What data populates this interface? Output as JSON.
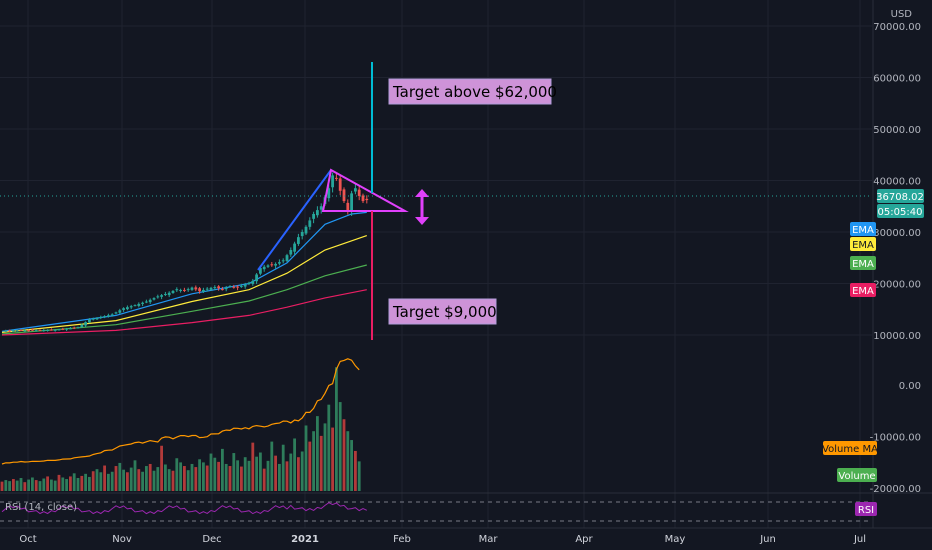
{
  "chart_data": {
    "type": "candlestick",
    "currency": "USD",
    "price_axis": {
      "ticks": [
        10000,
        20000,
        30000,
        40000,
        50000,
        60000,
        70000
      ],
      "labels": [
        "10000.00",
        "20000.00",
        "30000.00",
        "40000.00",
        "50000.00",
        "60000.00",
        "70000.00"
      ],
      "range": [
        0,
        72000
      ]
    },
    "volume_axis": {
      "ticks": [
        0,
        -10000,
        -20000
      ],
      "labels": [
        "0.00",
        "-10000.00",
        "-20000.00"
      ]
    },
    "time_axis": {
      "labels": [
        "Oct",
        "Nov",
        "Dec",
        "2021",
        "Feb",
        "Mar",
        "Apr",
        "May",
        "Jun",
        "Jul"
      ],
      "bold_index": 3
    },
    "last_price": {
      "value": 36708.02,
      "label": "36708.02",
      "countdown": "05:05:40"
    },
    "price_path": [
      [
        0,
        10800
      ],
      [
        5,
        10900
      ],
      [
        10,
        10950
      ],
      [
        14,
        11000
      ],
      [
        18,
        11300
      ],
      [
        20,
        11500
      ],
      [
        23,
        13000
      ],
      [
        26,
        13500
      ],
      [
        29,
        14000
      ],
      [
        32,
        15200
      ],
      [
        35,
        15800
      ],
      [
        38,
        16500
      ],
      [
        41,
        17500
      ],
      [
        44,
        18200
      ],
      [
        46,
        18900
      ],
      [
        48,
        18600
      ],
      [
        50,
        19200
      ],
      [
        52,
        18500
      ],
      [
        54,
        19000
      ],
      [
        56,
        19300
      ],
      [
        58,
        18900
      ],
      [
        60,
        19500
      ],
      [
        62,
        19200
      ],
      [
        64,
        19800
      ],
      [
        66,
        20500
      ],
      [
        68,
        23000
      ],
      [
        70,
        23500
      ],
      [
        72,
        23800
      ],
      [
        74,
        24500
      ],
      [
        76,
        26500
      ],
      [
        78,
        29000
      ],
      [
        80,
        31000
      ],
      [
        82,
        33500
      ],
      [
        84,
        35000
      ],
      [
        86,
        38500
      ],
      [
        87,
        41000
      ],
      [
        88,
        40500
      ],
      [
        89,
        38000
      ],
      [
        90,
        36000
      ],
      [
        91,
        34000
      ],
      [
        92,
        37500
      ],
      [
        93,
        38500
      ],
      [
        94,
        37000
      ],
      [
        95,
        36000
      ],
      [
        96,
        36200
      ],
      [
        97,
        35700
      ],
      [
        98,
        36708
      ]
    ],
    "ema_series": [
      {
        "name": "EMA",
        "color": "#2196f3",
        "points": [
          [
            0,
            10700
          ],
          [
            30,
            13800
          ],
          [
            50,
            18000
          ],
          [
            65,
            20000
          ],
          [
            75,
            24000
          ],
          [
            85,
            31500
          ],
          [
            92,
            33500
          ],
          [
            96,
            33800
          ]
        ]
      },
      {
        "name": "EMA",
        "color": "#ffeb3b",
        "points": [
          [
            0,
            10500
          ],
          [
            30,
            12800
          ],
          [
            50,
            16500
          ],
          [
            65,
            18800
          ],
          [
            75,
            22000
          ],
          [
            85,
            26500
          ],
          [
            96,
            29300
          ]
        ]
      },
      {
        "name": "EMA",
        "color": "#4caf50",
        "points": [
          [
            0,
            10200
          ],
          [
            30,
            12000
          ],
          [
            50,
            14600
          ],
          [
            65,
            16600
          ],
          [
            75,
            18800
          ],
          [
            85,
            21500
          ],
          [
            96,
            23600
          ]
        ]
      },
      {
        "name": "EMA",
        "color": "#e91e63",
        "points": [
          [
            0,
            10000
          ],
          [
            30,
            10900
          ],
          [
            50,
            12400
          ],
          [
            65,
            13800
          ],
          [
            75,
            15400
          ],
          [
            85,
            17200
          ],
          [
            96,
            18800
          ]
        ]
      }
    ],
    "ema_legend": [
      {
        "label": "EMA",
        "color": "#2196f3"
      },
      {
        "label": "EMA",
        "color": "#ffeb3b"
      },
      {
        "label": "EMA",
        "color": "#4caf50"
      },
      {
        "label": "EMA",
        "color": "#e91e63"
      }
    ],
    "volume_values": [
      1800,
      2100,
      1900,
      2300,
      2000,
      2500,
      1700,
      2200,
      2600,
      2100,
      1900,
      2400,
      2800,
      2200,
      2000,
      3100,
      2600,
      2300,
      2800,
      3400,
      2500,
      2900,
      3300,
      2700,
      3800,
      4200,
      3600,
      4900,
      3300,
      3700,
      4800,
      5400,
      4100,
      3600,
      4500,
      5900,
      4200,
      3700,
      4800,
      5200,
      3900,
      4600,
      8700,
      5100,
      4200,
      3900,
      6300,
      5500,
      4800,
      4000,
      5200,
      4600,
      6100,
      5500,
      4900,
      7200,
      6400,
      5600,
      8100,
      5200,
      4800,
      7300,
      5900,
      4700,
      6500,
      5800,
      9300,
      6600,
      7400,
      4300,
      5800,
      9500,
      6800,
      5200,
      8900,
      5700,
      7200,
      10100,
      6500,
      7600,
      12600,
      9500,
      11500,
      14400,
      10600,
      13000,
      16600,
      12200,
      23800,
      17100,
      13800,
      11500,
      9800,
      7700,
      5700
    ],
    "volume_ma": {
      "name": "Volume MA",
      "color": "#ff9800",
      "label": "Volume MA"
    },
    "volume_label": {
      "text": "Volume",
      "color": "#4caf50"
    },
    "rsi": {
      "label": "RSI (14, close)",
      "tag": "RSI",
      "color": "#9c27b0"
    },
    "annotations": {
      "target_up": "Target above $62,000",
      "target_down": "Target $9,000",
      "up_target_price": 62000,
      "down_target_price": 9000,
      "color_target_up": "#00bcd4",
      "color_target_down": "#e91e63",
      "triangle_color": "#e040fb",
      "rising_line_color": "#2962ff"
    }
  }
}
